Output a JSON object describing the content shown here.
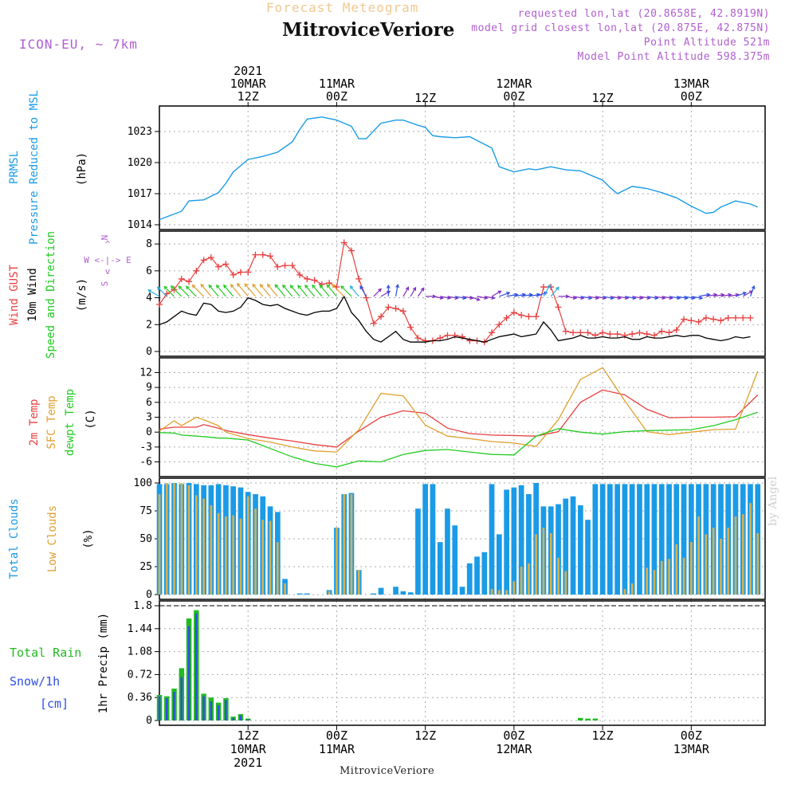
{
  "header": {
    "subtitle": "Forecast Meteogram",
    "title": "MitroviceVeriore",
    "model": "ICON-EU, ~ 7km",
    "requested": "requested lon,lat (20.8658E, 42.8919N)",
    "closest": "model grid closest lon,lat (20.875E, 42.875N)",
    "point_alt": "Point Altitude 521m",
    "model_alt": "Model Point Altitude 598.375m",
    "footer": "MitroviceVeriore",
    "credit": "by Angel"
  },
  "colors": {
    "pressure": "#1a9be6",
    "gust": "#e84040",
    "wind": "#000000",
    "temp": "#e84040",
    "sfc": "#e0a030",
    "dew": "#22cc22",
    "total_clouds": "#1a9be6",
    "low_clouds": "#d4b050",
    "rain": "#22bb22",
    "snow": "#3050e0",
    "header_purple": "#b060d0"
  },
  "time_axis": {
    "top_year": "2021",
    "ticks": [
      {
        "h": 12,
        "top": [
          "10MAR",
          "12Z"
        ],
        "bottom": [
          "12Z",
          "10MAR",
          "2021"
        ]
      },
      {
        "h": 24,
        "top": [
          "11MAR",
          "00Z"
        ],
        "bottom": [
          "00Z",
          "11MAR"
        ]
      },
      {
        "h": 36,
        "top": [
          "12Z"
        ],
        "bottom": [
          "12Z"
        ]
      },
      {
        "h": 48,
        "top": [
          "12MAR",
          "00Z"
        ],
        "bottom": [
          "00Z",
          "12MAR"
        ]
      },
      {
        "h": 60,
        "top": [
          "12Z"
        ],
        "bottom": [
          "12Z"
        ]
      },
      {
        "h": 72,
        "top": [
          "13MAR",
          "00Z"
        ],
        "bottom": [
          "00Z",
          "13MAR"
        ]
      }
    ]
  },
  "chart_data": [
    {
      "type": "line",
      "panel": "pressure",
      "ylabel": [
        "PRMSL",
        "Pressure Reduced to MSL",
        "(hPa)"
      ],
      "ylim": [
        1014,
        1025
      ],
      "yticks": [
        1014,
        1017,
        1020,
        1023
      ],
      "x_hours": [
        0,
        3,
        4,
        6,
        8,
        9,
        10,
        12,
        14,
        16,
        18,
        19,
        20,
        22,
        24,
        26,
        27,
        28,
        30,
        32,
        33,
        35,
        36,
        37,
        38,
        40,
        42,
        45,
        46,
        48,
        50,
        51,
        53,
        55,
        57,
        59,
        60,
        61,
        62,
        64,
        66,
        68,
        70,
        72,
        74,
        75,
        76,
        78,
        80,
        81
      ],
      "values": [
        1014.5,
        1015.3,
        1016.3,
        1016.4,
        1017.1,
        1018.0,
        1019.1,
        1020.3,
        1020.6,
        1021.0,
        1022.0,
        1023.2,
        1024.2,
        1024.4,
        1024.1,
        1023.5,
        1022.3,
        1022.3,
        1023.8,
        1024.1,
        1024.1,
        1023.6,
        1023.4,
        1022.6,
        1022.5,
        1022.4,
        1022.5,
        1021.4,
        1019.6,
        1019.1,
        1019.4,
        1019.3,
        1019.6,
        1019.3,
        1019.2,
        1018.6,
        1018.3,
        1017.6,
        1017.0,
        1017.7,
        1017.5,
        1017.1,
        1016.6,
        1015.8,
        1015.1,
        1015.2,
        1015.7,
        1016.3,
        1016.0,
        1015.7
      ],
      "series_value_labels": []
    },
    {
      "type": "line",
      "panel": "wind",
      "ylabel": [
        "Wind GUST",
        "10m Wind",
        "Speed and Direction",
        "(m/s)"
      ],
      "compass": [
        "N",
        "^",
        "W <-|-> E",
        "v",
        "S"
      ],
      "ylim": [
        0,
        8.6
      ],
      "yticks": [
        0,
        2,
        4,
        6,
        8
      ],
      "x_hours": [
        0,
        1,
        2,
        3,
        4,
        5,
        6,
        7,
        8,
        9,
        10,
        11,
        12,
        13,
        14,
        15,
        16,
        17,
        18,
        19,
        20,
        21,
        22,
        23,
        24,
        25,
        26,
        27,
        28,
        29,
        30,
        31,
        32,
        33,
        34,
        35,
        36,
        37,
        38,
        39,
        40,
        41,
        42,
        43,
        44,
        45,
        46,
        47,
        48,
        49,
        50,
        51,
        52,
        53,
        54,
        55,
        56,
        57,
        58,
        59,
        60,
        61,
        62,
        63,
        64,
        65,
        66,
        67,
        68,
        69,
        70,
        71,
        72,
        73,
        74,
        75,
        76,
        77,
        78,
        79,
        80
      ],
      "gust": [
        3.5,
        4.3,
        4.6,
        5.4,
        5.2,
        6.0,
        6.8,
        7.0,
        6.3,
        6.5,
        5.7,
        5.9,
        5.9,
        7.2,
        7.2,
        7.1,
        6.3,
        6.4,
        6.4,
        5.7,
        5.4,
        5.3,
        5.0,
        5.1,
        4.8,
        8.1,
        7.5,
        5.4,
        4.0,
        2.1,
        2.6,
        3.3,
        3.2,
        3.0,
        1.8,
        1.0,
        0.8,
        0.8,
        1.0,
        1.2,
        1.2,
        1.1,
        0.8,
        0.8,
        0.7,
        1.4,
        2.0,
        2.5,
        2.9,
        2.7,
        2.6,
        2.6,
        4.8,
        4.8,
        3.3,
        1.5,
        1.4,
        1.4,
        1.4,
        1.2,
        1.4,
        1.3,
        1.3,
        1.2,
        1.3,
        1.4,
        1.3,
        1.2,
        1.5,
        1.4,
        1.6,
        2.4,
        2.3,
        2.2,
        2.5,
        2.4,
        2.3,
        2.5,
        2.5,
        2.5,
        2.5
      ],
      "wind": [
        2.0,
        2.2,
        2.6,
        3.0,
        2.8,
        2.7,
        3.6,
        3.5,
        3.0,
        2.9,
        3.0,
        3.3,
        4.0,
        3.8,
        3.5,
        3.4,
        3.5,
        3.2,
        3.0,
        2.8,
        2.7,
        2.9,
        3.0,
        3.0,
        3.2,
        4.1,
        2.9,
        2.3,
        1.5,
        0.9,
        0.7,
        1.1,
        1.5,
        0.9,
        0.7,
        0.7,
        0.7,
        0.8,
        0.8,
        0.9,
        1.1,
        1.0,
        0.9,
        0.8,
        0.7,
        0.9,
        1.1,
        1.2,
        1.3,
        1.1,
        1.2,
        1.3,
        2.2,
        1.6,
        0.8,
        0.9,
        1.0,
        1.2,
        1.0,
        1.0,
        1.1,
        1.0,
        1.0,
        1.1,
        0.9,
        0.9,
        1.1,
        1.0,
        1.0,
        1.1,
        1.2,
        1.1,
        1.2,
        1.2,
        1.0,
        0.9,
        0.8,
        0.9,
        1.1,
        1.0,
        1.1
      ],
      "arrow_dirs_deg": [
        300,
        315,
        315,
        315,
        315,
        315,
        315,
        320,
        320,
        320,
        320,
        320,
        320,
        320,
        320,
        320,
        320,
        320,
        320,
        320,
        320,
        320,
        320,
        320,
        320,
        315,
        315,
        320,
        330,
        45,
        60,
        0,
        10,
        30,
        30,
        35,
        90,
        100,
        100,
        100,
        100,
        100,
        110,
        100,
        100,
        60,
        70,
        80,
        80,
        80,
        80,
        70,
        30,
        40,
        90,
        100,
        100,
        100,
        100,
        100,
        100,
        100,
        100,
        100,
        100,
        100,
        100,
        100,
        100,
        100,
        100,
        100,
        100,
        80,
        80,
        80,
        80,
        80,
        70,
        60,
        20
      ]
    },
    {
      "type": "line",
      "panel": "temperature",
      "ylabel": [
        "2m Temp",
        "SFC Temp",
        "dewpt Temp",
        "(C)"
      ],
      "ylim": [
        -8,
        14
      ],
      "yticks": [
        -6,
        -3,
        0,
        3,
        6,
        9,
        12
      ],
      "x_hours": [
        0,
        2,
        3,
        5,
        6,
        8,
        9,
        12,
        15,
        18,
        21,
        24,
        27,
        30,
        33,
        36,
        39,
        42,
        45,
        48,
        51,
        54,
        57,
        60,
        63,
        66,
        69,
        72,
        75,
        78,
        81
      ],
      "series": [
        {
          "name": "2m Temp",
          "values": [
            0.6,
            1.0,
            1.0,
            1.0,
            1.5,
            0.8,
            0.3,
            -0.5,
            -1.2,
            -1.8,
            -2.5,
            -3.0,
            0.2,
            3.0,
            4.3,
            3.8,
            0.8,
            -0.3,
            -0.6,
            -0.7,
            -0.8,
            0.1,
            6.0,
            8.5,
            7.5,
            4.6,
            2.9,
            3.0,
            3.0,
            3.1,
            7.5
          ]
        },
        {
          "name": "SFC Temp",
          "values": [
            0.2,
            2.3,
            1.3,
            3.0,
            2.5,
            1.3,
            0.0,
            -1.3,
            -2.0,
            -3.0,
            -3.8,
            -4.0,
            0.5,
            7.8,
            7.3,
            1.4,
            -0.8,
            -1.3,
            -1.9,
            -2.2,
            -2.9,
            2.5,
            10.6,
            13.0,
            6.3,
            0.1,
            -0.5,
            0.0,
            0.5,
            0.6,
            12.3
          ]
        },
        {
          "name": "dewpt Temp",
          "values": [
            -0.1,
            -0.2,
            -0.6,
            -0.8,
            -0.9,
            -1.2,
            -1.2,
            -1.6,
            -3.3,
            -5.0,
            -6.3,
            -7.0,
            -5.8,
            -6.0,
            -4.5,
            -3.7,
            -3.5,
            -4.0,
            -4.5,
            -4.6,
            -0.8,
            0.7,
            0.0,
            -0.4,
            0.1,
            0.3,
            0.4,
            0.5,
            1.3,
            2.5,
            4.0
          ]
        }
      ]
    },
    {
      "type": "bar",
      "panel": "clouds",
      "ylabel": [
        "Total Clouds",
        "Low Clouds",
        "(%)"
      ],
      "ylim": [
        0,
        100
      ],
      "yticks": [
        0,
        25,
        50,
        75,
        100
      ],
      "x_hours": [
        0,
        1,
        2,
        3,
        4,
        5,
        6,
        7,
        8,
        9,
        10,
        11,
        12,
        13,
        14,
        15,
        16,
        17,
        18,
        19,
        20,
        21,
        22,
        23,
        24,
        25,
        26,
        27,
        28,
        29,
        30,
        31,
        32,
        33,
        34,
        35,
        36,
        37,
        38,
        39,
        40,
        41,
        42,
        43,
        44,
        45,
        46,
        47,
        48,
        49,
        50,
        51,
        52,
        53,
        54,
        55,
        56,
        57,
        58,
        59,
        60,
        61,
        62,
        63,
        64,
        65,
        66,
        67,
        68,
        69,
        70,
        71,
        72,
        73,
        74,
        75,
        76,
        77,
        78,
        79,
        80,
        81
      ],
      "series": [
        {
          "name": "Total Clouds",
          "values": [
            99,
            99,
            100,
            99,
            100,
            99,
            98,
            98,
            99,
            98,
            97,
            96,
            92,
            90,
            88,
            79,
            74,
            14,
            0,
            1,
            1,
            0,
            0,
            4,
            60,
            90,
            91,
            22,
            0,
            1,
            6,
            0,
            7,
            3,
            2,
            77,
            99,
            99,
            47,
            77,
            62,
            7,
            28,
            34,
            38,
            99,
            54,
            94,
            96,
            98,
            90,
            100,
            79,
            79,
            81,
            86,
            88,
            80,
            67,
            99,
            99,
            99,
            99,
            99,
            99,
            99,
            99,
            99,
            99,
            99,
            99,
            99,
            99,
            99,
            99,
            99,
            99,
            99,
            99,
            99,
            99,
            99
          ]
        },
        {
          "name": "Low Clouds",
          "values": [
            90,
            100,
            100,
            100,
            98,
            89,
            86,
            80,
            73,
            70,
            71,
            68,
            88,
            77,
            67,
            66,
            47,
            10,
            0,
            0,
            0,
            0,
            0,
            3,
            60,
            90,
            90,
            22,
            0,
            0,
            0,
            0,
            0,
            0,
            0,
            0,
            0,
            0,
            0,
            0,
            0,
            0,
            0,
            0,
            0,
            5,
            4,
            4,
            12,
            25,
            28,
            54,
            60,
            55,
            33,
            21,
            0,
            0,
            0,
            0,
            0,
            0,
            0,
            5,
            10,
            0,
            24,
            22,
            30,
            32,
            45,
            33,
            47,
            70,
            54,
            60,
            50,
            60,
            70,
            72,
            82,
            55
          ]
        }
      ]
    },
    {
      "type": "bar",
      "panel": "precip",
      "ylabel": [
        "Total  Rain",
        "Snow/1h",
        "[cm]",
        "1hr Precip (mm)"
      ],
      "ylim": [
        0,
        1.8
      ],
      "yticks": [
        0,
        0.36,
        0.72,
        1.08,
        1.44,
        1.8
      ],
      "x_hours": [
        0,
        1,
        2,
        3,
        4,
        5,
        6,
        7,
        8,
        9,
        10,
        11,
        12,
        13,
        14,
        15,
        16,
        17,
        18,
        19,
        20,
        21,
        22,
        23,
        24,
        25,
        26,
        27,
        28,
        29,
        30,
        31,
        32,
        33,
        34,
        35,
        36,
        37,
        38,
        39,
        40,
        41,
        42,
        43,
        44,
        45,
        46,
        47,
        48,
        49,
        50,
        51,
        52,
        53,
        54,
        55,
        56,
        57,
        58,
        59,
        60,
        61,
        62,
        63,
        64,
        65,
        66,
        67,
        68,
        69,
        70,
        71,
        72,
        73,
        74,
        75,
        76,
        77,
        78,
        79,
        80,
        81
      ],
      "series": [
        {
          "name": "Total Rain",
          "values": [
            0.4,
            0.38,
            0.5,
            0.82,
            1.6,
            1.73,
            0.42,
            0.36,
            0.28,
            0.35,
            0.06,
            0.1,
            0.03,
            0,
            0,
            0,
            0,
            0,
            0,
            0,
            0,
            0,
            0,
            0,
            0,
            0,
            0,
            0,
            0,
            0,
            0,
            0,
            0,
            0,
            0,
            0,
            0,
            0,
            0,
            0,
            0,
            0,
            0,
            0,
            0,
            0,
            0,
            0,
            0,
            0,
            0,
            0,
            0,
            0,
            0,
            0,
            0,
            0.04,
            0.03,
            0.03,
            0,
            0,
            0,
            0,
            0,
            0,
            0,
            0,
            0,
            0,
            0,
            0,
            0,
            0,
            0,
            0,
            0,
            0,
            0,
            0,
            0,
            0
          ]
        },
        {
          "name": "Snow/1h",
          "values": [
            0.38,
            0.35,
            0.45,
            0.68,
            1.48,
            1.68,
            0.38,
            0.3,
            0.24,
            0.32,
            0.04,
            0.08,
            0.02,
            0,
            0,
            0,
            0,
            0,
            0,
            0,
            0,
            0,
            0,
            0,
            0,
            0,
            0,
            0,
            0,
            0,
            0,
            0,
            0,
            0,
            0,
            0,
            0,
            0,
            0,
            0,
            0,
            0,
            0,
            0,
            0,
            0,
            0,
            0,
            0,
            0,
            0,
            0,
            0,
            0,
            0,
            0,
            0,
            0,
            0,
            0,
            0,
            0,
            0,
            0,
            0,
            0,
            0,
            0,
            0,
            0,
            0,
            0,
            0,
            0,
            0,
            0,
            0,
            0,
            0,
            0,
            0,
            0
          ]
        }
      ]
    }
  ]
}
